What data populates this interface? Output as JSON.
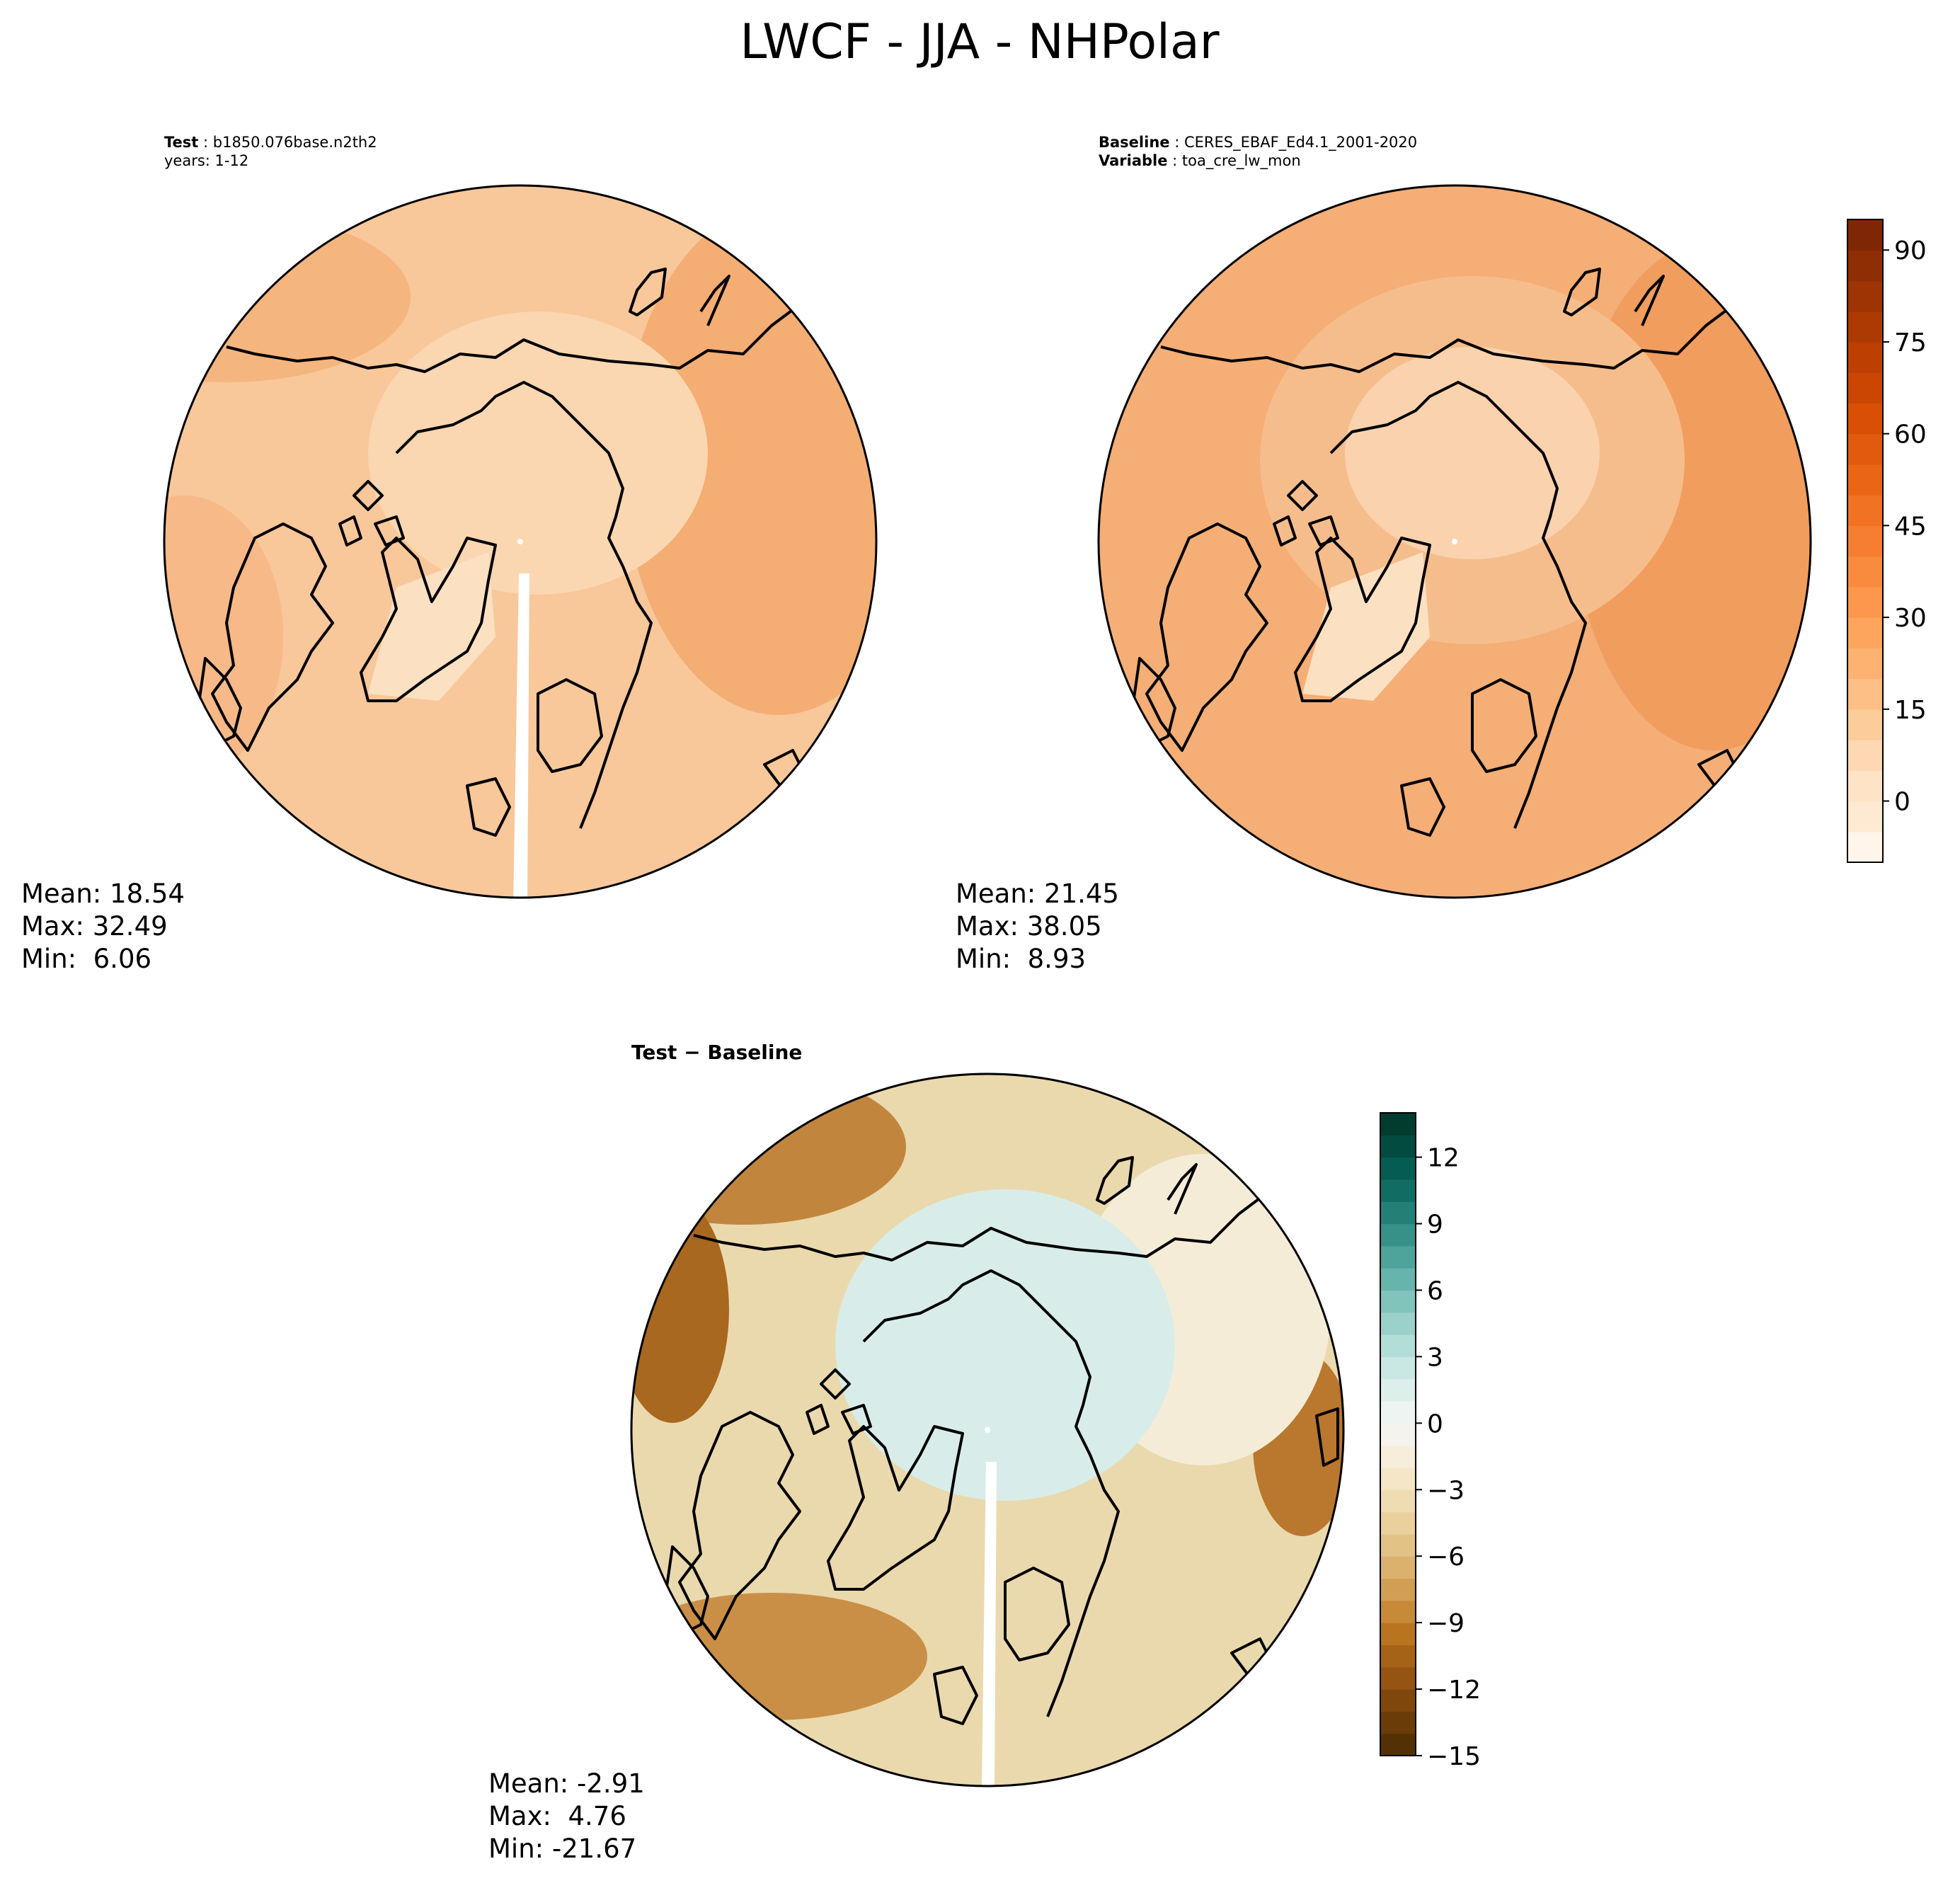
{
  "figure": {
    "title": "LWCF - JJA - NHPolar"
  },
  "panels": [
    {
      "id": "test",
      "header": [
        {
          "key": "Test",
          "value": " : b1850.076base.n2th2"
        },
        {
          "key": "",
          "value": "years: 1-12"
        }
      ],
      "stats": {
        "mean": "Mean: 18.54",
        "max": "Max: 32.49",
        "min": "Min:  6.06"
      },
      "base_color": "#f8c79a",
      "regions": [
        {
          "color": "#f5b57f",
          "label": "north pacific / asia"
        },
        {
          "color": "#f4ad73",
          "label": "eastern eurasia"
        },
        {
          "color": "#fad6b1",
          "label": "arctic ocean"
        },
        {
          "color": "#fbe0c2",
          "label": "greenland"
        }
      ]
    },
    {
      "id": "baseline",
      "header": [
        {
          "key": "Baseline",
          "value": " : CERES_EBAF_Ed4.1_2001-2020"
        },
        {
          "key": "Variable",
          "value": " : toa_cre_lw_mon"
        }
      ],
      "stats": {
        "mean": "Mean: 21.45",
        "max": "Max: 38.05",
        "min": "Min:  8.93"
      },
      "base_color": "#f4ae76",
      "regions": [
        {
          "color": "#f19d5e",
          "label": "outer ring"
        },
        {
          "color": "#f6bd8c",
          "label": "arctic ocean"
        },
        {
          "color": "#fad2ad",
          "label": "central arctic"
        },
        {
          "color": "#fbe0c2",
          "label": "greenland"
        }
      ]
    },
    {
      "id": "difference",
      "header": [
        {
          "key": "Test − Baseline",
          "value": ""
        }
      ],
      "stats": {
        "mean": "Mean: -2.91",
        "max": "Max:  4.76",
        "min": "Min: -21.67"
      },
      "base_color": "#ead9ad",
      "regions": [
        {
          "color": "#d8ede9",
          "label": "arctic ocean (positive)"
        },
        {
          "color": "#c1853e",
          "label": "siberia"
        },
        {
          "color": "#a8681f",
          "label": "north pacific"
        },
        {
          "color": "#f5ecd8",
          "label": "north atlantic"
        }
      ]
    }
  ],
  "colorbars": [
    {
      "id": "absolute",
      "min": -10,
      "max": 95,
      "ticks": [
        -10,
        -5,
        0,
        5,
        10,
        15,
        20,
        25,
        30,
        35,
        40,
        45,
        50,
        55,
        60,
        65,
        70,
        75,
        80,
        85,
        90,
        95
      ],
      "tick_labels": [
        {
          "value": 0,
          "label": "0"
        },
        {
          "value": 15,
          "label": "15"
        },
        {
          "value": 30,
          "label": "30"
        },
        {
          "value": 45,
          "label": "45"
        },
        {
          "value": 60,
          "label": "60"
        },
        {
          "value": 75,
          "label": "75"
        },
        {
          "value": 90,
          "label": "90"
        }
      ],
      "colors": [
        "#fff5eb",
        "#fee9d3",
        "#fee3c7",
        "#fdd8b2",
        "#fdcc9b",
        "#fdbf86",
        "#fdb272",
        "#fda45d",
        "#fd974d",
        "#f98b3e",
        "#f67e30",
        "#f07222",
        "#ea6616",
        "#e15a0e",
        "#d94f05",
        "#cb4602",
        "#bd3f02",
        "#ad3903",
        "#9e3303",
        "#8f2d04",
        "#7f2704"
      ]
    },
    {
      "id": "difference",
      "min": -15,
      "max": 14,
      "ticks": [
        -15,
        -14,
        -13,
        -12,
        -11,
        -10,
        -9,
        -8,
        -7,
        -6,
        -5,
        -4,
        -3,
        -2,
        -1,
        0,
        1,
        2,
        3,
        4,
        5,
        6,
        7,
        8,
        9,
        10,
        11,
        12,
        13,
        14
      ],
      "tick_labels": [
        {
          "value": -15,
          "label": "−15"
        },
        {
          "value": -12,
          "label": "−12"
        },
        {
          "value": -9,
          "label": "−9"
        },
        {
          "value": -6,
          "label": "−6"
        },
        {
          "value": -3,
          "label": "−3"
        },
        {
          "value": 0,
          "label": "0"
        },
        {
          "value": 3,
          "label": "3"
        },
        {
          "value": 6,
          "label": "6"
        },
        {
          "value": 9,
          "label": "9"
        },
        {
          "value": 12,
          "label": "12"
        }
      ],
      "colors": [
        "#543005",
        "#6a3c08",
        "#80470b",
        "#955411",
        "#a66316",
        "#b8741f",
        "#c68a39",
        "#d19e54",
        "#dbb16d",
        "#e3c286",
        "#ead09d",
        "#f0dcb2",
        "#f4e6c6",
        "#f6eedb",
        "#f5f3ee",
        "#eef4f2",
        "#dcefeb",
        "#c9e8e3",
        "#b2ded8",
        "#9ad2cb",
        "#80c4bc",
        "#66b4ab",
        "#4ea49a",
        "#379189",
        "#237f77",
        "#116d64",
        "#055c52",
        "#014b41",
        "#003c30"
      ]
    }
  ]
}
